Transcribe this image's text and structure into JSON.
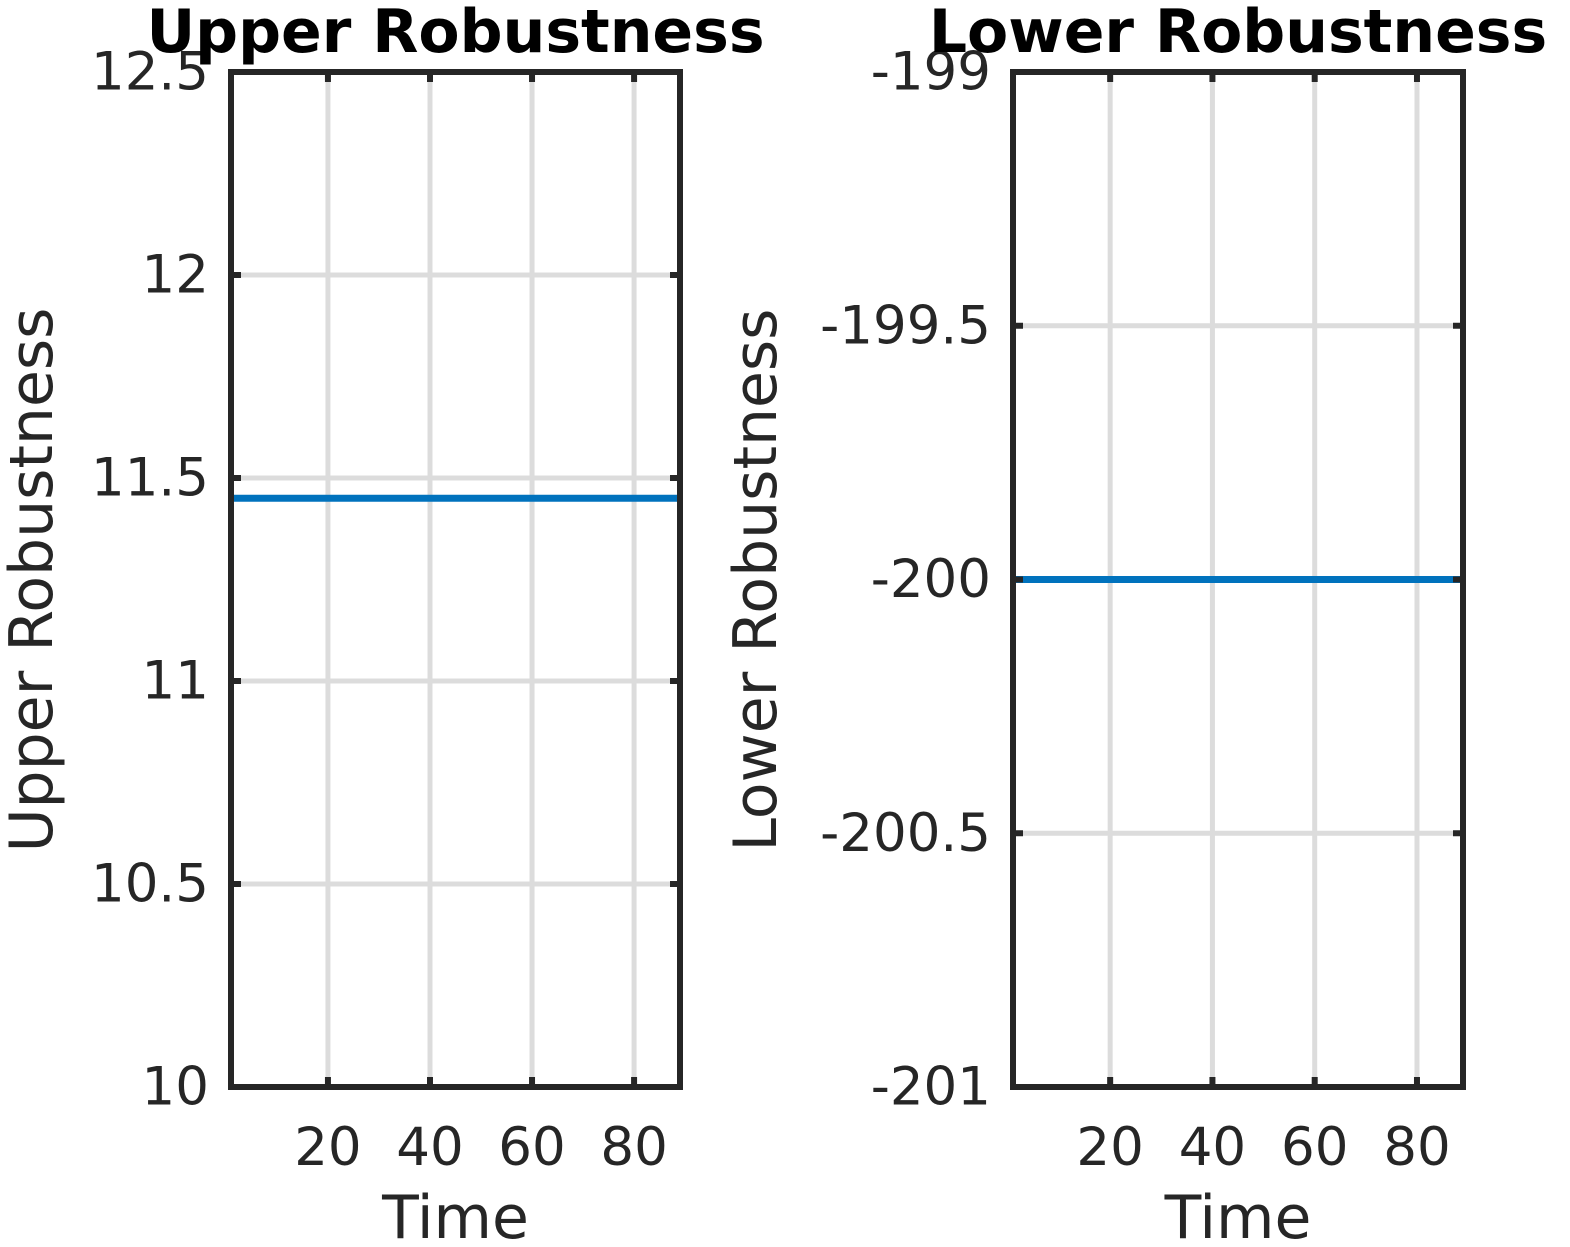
{
  "chart_data": [
    {
      "type": "line",
      "title": "Upper Robustness",
      "xlabel": "Time",
      "ylabel": "Upper Robustness",
      "xlim": [
        1,
        89
      ],
      "ylim": [
        10,
        12.5
      ],
      "xticks": [
        20,
        40,
        60,
        80
      ],
      "xtick_labels": [
        "20",
        "40",
        "60",
        "80"
      ],
      "yticks": [
        10,
        10.5,
        11,
        11.5,
        12,
        12.5
      ],
      "ytick_labels": [
        "10",
        "10.5",
        "11",
        "11.5",
        "12",
        "12.5"
      ],
      "grid": true,
      "series": [
        {
          "color": "#0072bd",
          "x": [
            1,
            89
          ],
          "y": [
            11.45,
            11.45
          ]
        }
      ]
    },
    {
      "type": "line",
      "title": "Lower Robustness",
      "xlabel": "Time",
      "ylabel": "Lower Robustness",
      "xlim": [
        1,
        89
      ],
      "ylim": [
        -201,
        -199
      ],
      "xticks": [
        20,
        40,
        60,
        80
      ],
      "xtick_labels": [
        "20",
        "40",
        "60",
        "80"
      ],
      "yticks": [
        -201,
        -200.5,
        -200,
        -199.5,
        -199
      ],
      "ytick_labels": [
        "-201",
        "-200.5",
        "-200",
        "-199.5",
        "-199"
      ],
      "grid": true,
      "series": [
        {
          "color": "#0072bd",
          "x": [
            1,
            89
          ],
          "y": [
            -200,
            -200
          ]
        }
      ]
    }
  ]
}
